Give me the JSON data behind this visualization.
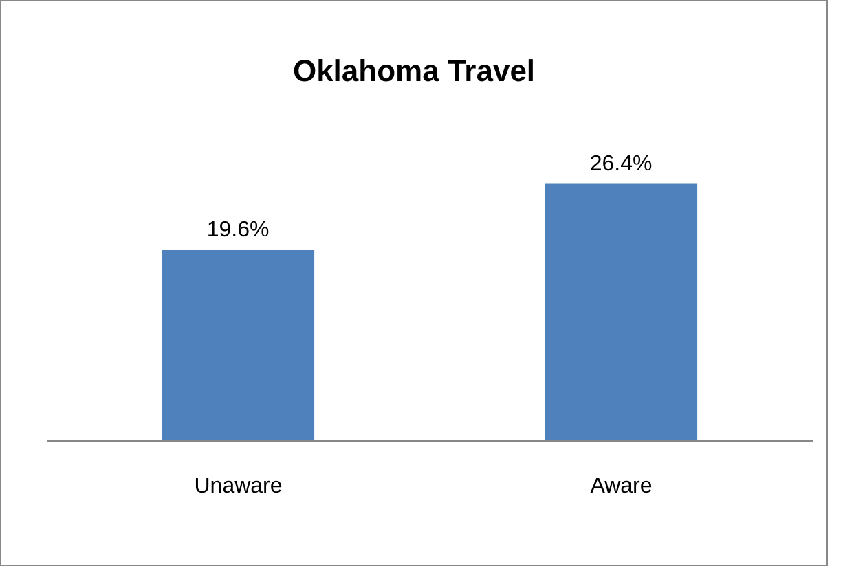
{
  "chart_data": {
    "type": "bar",
    "title": "Oklahoma Travel",
    "categories": [
      "Unaware",
      "Aware"
    ],
    "values": [
      19.6,
      26.4
    ],
    "value_labels": [
      "19.6%",
      "26.4%"
    ],
    "color": "#4f81bd"
  }
}
